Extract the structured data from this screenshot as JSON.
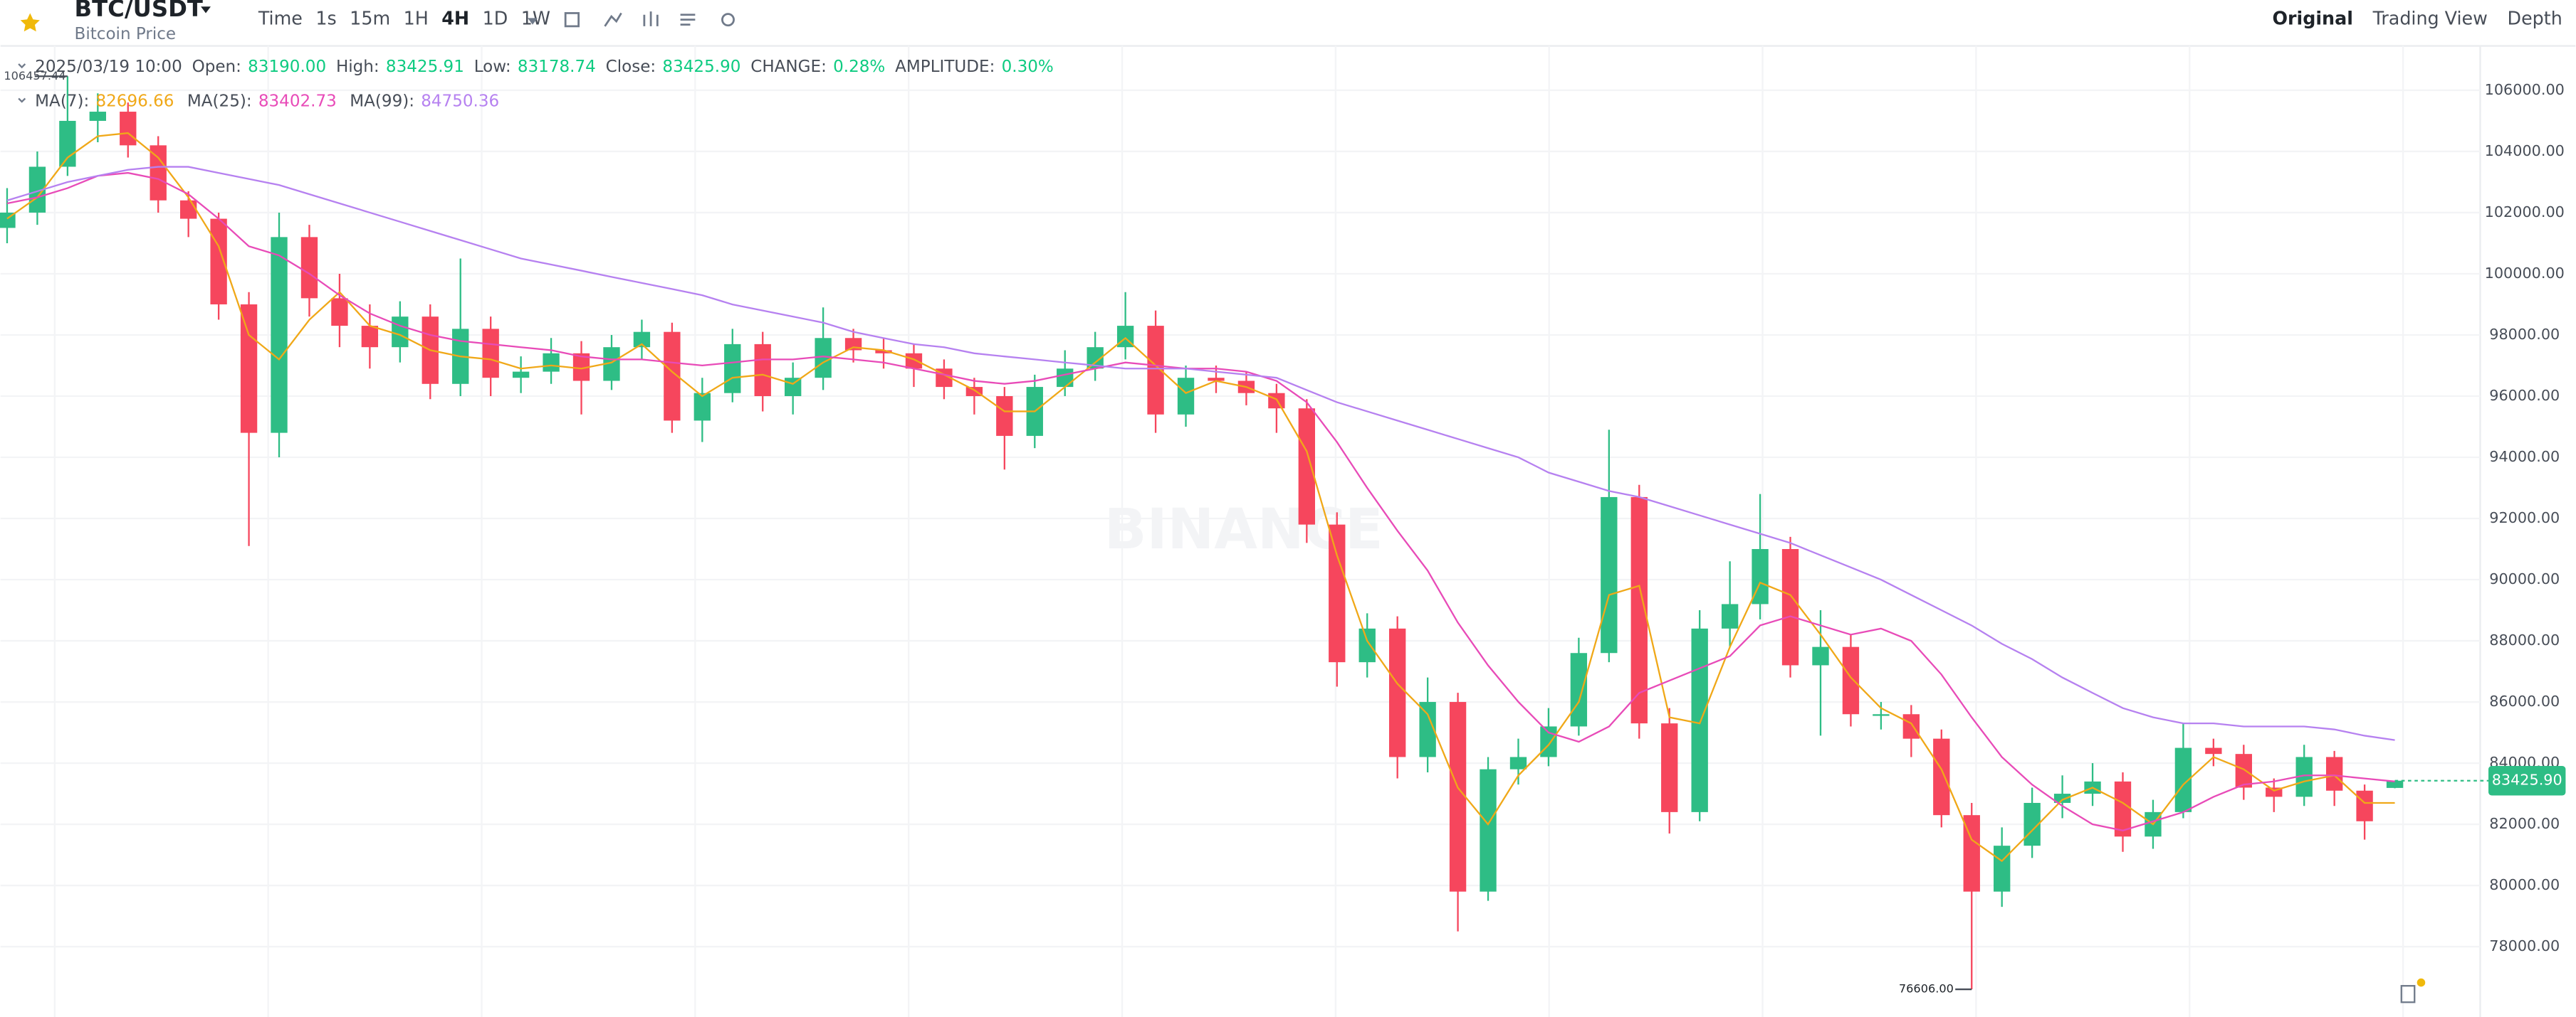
{
  "header": {
    "symbol": "BTC/USDT",
    "subtitle": "Bitcoin Price",
    "intervals": [
      "Time",
      "1s",
      "15m",
      "1H",
      "4H",
      "1D",
      "1W"
    ],
    "active_interval": "4H",
    "views": [
      "Original",
      "Trading View",
      "Depth"
    ],
    "active_view": "Original"
  },
  "chart_data": {
    "type": "candlestick",
    "info": {
      "date": "2025/03/19 10:00",
      "fields": [
        {
          "label": "Open:",
          "value": "83190.00"
        },
        {
          "label": "High:",
          "value": "83425.91"
        },
        {
          "label": "Low:",
          "value": "83178.74"
        },
        {
          "label": "Close:",
          "value": "83425.90"
        },
        {
          "label": "CHANGE:",
          "value": "0.28%"
        },
        {
          "label": "AMPLITUDE:",
          "value": "0.30%"
        }
      ],
      "value_color": "#0ecb81"
    },
    "candles": {
      "up_color": "#2ebd85",
      "down_color": "#f6465d",
      "open": [
        101500,
        102000,
        103500,
        105000,
        105300,
        104200,
        102400,
        101800,
        99000,
        94800,
        101200,
        99200,
        98300,
        97600,
        98600,
        96400,
        98200,
        96600,
        96800,
        97400,
        96500,
        97600,
        98100,
        95200,
        96100,
        97700,
        96000,
        96600,
        97900,
        97500,
        97400,
        96900,
        96300,
        96000,
        94700,
        96300,
        96900,
        97600,
        98300,
        95400,
        96600,
        96500,
        96100,
        95600,
        91800,
        87300,
        88400,
        84200,
        86000,
        79800,
        83800,
        84200,
        85200,
        87600,
        92700,
        85300,
        82400,
        88400,
        89200,
        91000,
        87200,
        87800,
        85600,
        85600,
        84800,
        82300,
        79800,
        81300,
        82700,
        83000,
        83400,
        81600,
        82400,
        84500,
        84300,
        83200,
        82900,
        84200,
        83100,
        83190
      ],
      "high": [
        102800,
        104000,
        106457.44,
        105900,
        105600,
        104500,
        102700,
        102000,
        99400,
        102000,
        101600,
        100000,
        99000,
        99100,
        99000,
        100500,
        98600,
        97300,
        97900,
        97800,
        98000,
        98500,
        98400,
        96600,
        98200,
        98100,
        97100,
        98900,
        98200,
        97900,
        97700,
        97200,
        96600,
        96300,
        96700,
        97500,
        98100,
        99400,
        98800,
        97000,
        97000,
        96800,
        96400,
        95900,
        92200,
        88900,
        88800,
        86800,
        86300,
        84200,
        84800,
        85800,
        88100,
        94900,
        93100,
        85800,
        89000,
        90600,
        92800,
        91400,
        89000,
        88200,
        86000,
        85900,
        85100,
        82700,
        81900,
        83200,
        83600,
        84000,
        83700,
        82800,
        85300,
        84800,
        84600,
        83500,
        84600,
        84400,
        83300,
        83425.91
      ],
      "low": [
        101000,
        101600,
        103200,
        104300,
        103800,
        102000,
        101200,
        98500,
        91100,
        94000,
        98600,
        97600,
        96900,
        97100,
        95900,
        96000,
        96000,
        96100,
        96400,
        95400,
        96200,
        97200,
        94800,
        94500,
        95800,
        95500,
        95400,
        96200,
        97100,
        96900,
        96300,
        95900,
        95400,
        93600,
        94300,
        96000,
        96500,
        97200,
        94800,
        95000,
        96100,
        95700,
        94800,
        91200,
        86500,
        86800,
        83500,
        83700,
        78500,
        79500,
        83300,
        83900,
        84900,
        87300,
        84800,
        81700,
        82100,
        87800,
        88700,
        86800,
        84900,
        85200,
        85100,
        84200,
        81900,
        76606,
        79300,
        80900,
        82200,
        82600,
        81100,
        81200,
        82200,
        83900,
        82800,
        82400,
        82600,
        82600,
        81500,
        83178.74
      ],
      "close": [
        102000,
        103500,
        105000,
        105300,
        104200,
        102400,
        101800,
        99000,
        94800,
        101200,
        99200,
        98300,
        97600,
        98600,
        96400,
        98200,
        96600,
        96800,
        97400,
        96500,
        97600,
        98100,
        95200,
        96100,
        97700,
        96000,
        96600,
        97900,
        97500,
        97400,
        96900,
        96300,
        96000,
        94700,
        96300,
        96900,
        97600,
        98300,
        95400,
        96600,
        96500,
        96100,
        95600,
        91800,
        87300,
        88400,
        84200,
        86000,
        79800,
        83800,
        84200,
        85200,
        87600,
        92700,
        85300,
        82400,
        88400,
        89200,
        91000,
        87200,
        87800,
        85600,
        85600,
        84800,
        82300,
        79800,
        81300,
        82700,
        83000,
        83400,
        81600,
        82400,
        84500,
        84300,
        83200,
        82900,
        84200,
        83100,
        82100,
        83425.9
      ]
    },
    "series": [
      {
        "name": "MA(7):",
        "value_label": "82696.66",
        "color": "#f0a818",
        "values": [
          101800,
          102500,
          103800,
          104500,
          104600,
          103800,
          102500,
          100900,
          98000,
          97200,
          98500,
          99400,
          98300,
          98000,
          97500,
          97300,
          97200,
          96900,
          97000,
          96900,
          97100,
          97700,
          96800,
          96000,
          96600,
          96700,
          96400,
          97100,
          97600,
          97500,
          97200,
          96700,
          96200,
          95500,
          95500,
          96300,
          97100,
          97900,
          97000,
          96100,
          96500,
          96300,
          95900,
          94200,
          90800,
          88000,
          86600,
          85600,
          83200,
          82000,
          83600,
          84600,
          86000,
          89500,
          89800,
          85500,
          85300,
          87800,
          89900,
          89500,
          88200,
          86800,
          85800,
          85300,
          83800,
          81500,
          80800,
          81800,
          82800,
          83200,
          82700,
          82000,
          83300,
          84200,
          83800,
          83100,
          83400,
          83600,
          82700,
          82696.66
        ]
      },
      {
        "name": "MA(25):",
        "value_label": "83402.73",
        "color": "#e84bb8",
        "values": [
          102300,
          102500,
          102800,
          103200,
          103300,
          103100,
          102600,
          101800,
          100900,
          100600,
          100000,
          99300,
          98700,
          98300,
          98000,
          97800,
          97700,
          97600,
          97500,
          97300,
          97200,
          97200,
          97100,
          97000,
          97100,
          97200,
          97200,
          97300,
          97200,
          97100,
          96900,
          96700,
          96500,
          96400,
          96500,
          96700,
          96900,
          97100,
          97000,
          96900,
          96900,
          96800,
          96500,
          95800,
          94500,
          93000,
          91600,
          90300,
          88600,
          87200,
          86000,
          85000,
          84700,
          85200,
          86300,
          86700,
          87100,
          87500,
          88500,
          88800,
          88500,
          88200,
          88400,
          88000,
          86900,
          85500,
          84200,
          83300,
          82600,
          82000,
          81800,
          82100,
          82400,
          82900,
          83300,
          83400,
          83600,
          83600,
          83500,
          83402.73
        ]
      },
      {
        "name": "MA(99):",
        "value_label": "84750.36",
        "color": "#b681f0",
        "values": [
          102400,
          102700,
          103000,
          103200,
          103400,
          103500,
          103500,
          103300,
          103100,
          102900,
          102600,
          102300,
          102000,
          101700,
          101400,
          101100,
          100800,
          100500,
          100300,
          100100,
          99900,
          99700,
          99500,
          99300,
          99000,
          98800,
          98600,
          98400,
          98100,
          97900,
          97700,
          97600,
          97400,
          97300,
          97200,
          97100,
          97000,
          96900,
          96900,
          96900,
          96800,
          96700,
          96600,
          96200,
          95800,
          95500,
          95200,
          94900,
          94600,
          94300,
          94000,
          93500,
          93200,
          92900,
          92700,
          92400,
          92100,
          91800,
          91500,
          91200,
          90800,
          90400,
          90000,
          89500,
          89000,
          88500,
          87900,
          87400,
          86800,
          86300,
          85800,
          85500,
          85300,
          85300,
          85200,
          85200,
          85200,
          85100,
          84900,
          84750.36
        ]
      }
    ],
    "ylim": [
      75700,
      107450
    ],
    "yticks": [
      {
        "value": 78000,
        "label": "78000.00"
      },
      {
        "value": 80000,
        "label": "80000.00"
      },
      {
        "value": 82000,
        "label": "82000.00"
      },
      {
        "value": 84000,
        "label": "84000.00"
      },
      {
        "value": 86000,
        "label": "86000.00"
      },
      {
        "value": 88000,
        "label": "88000.00"
      },
      {
        "value": 90000,
        "label": "90000.00"
      },
      {
        "value": 92000,
        "label": "92000.00"
      },
      {
        "value": 94000,
        "label": "94000.00"
      },
      {
        "value": 96000,
        "label": "96000.00"
      },
      {
        "value": 98000,
        "label": "98000.00"
      },
      {
        "value": 100000,
        "label": "100000.00"
      },
      {
        "value": 102000,
        "label": "102000.00"
      },
      {
        "value": 104000,
        "label": "104000.00"
      },
      {
        "value": 106000,
        "label": "106000.00"
      }
    ],
    "grid": true,
    "last_price_label": "83425.90",
    "last_price_color": "#2ebd85",
    "max_label": "106457.44",
    "min_label": "76606.00",
    "watermark": "BINANCE"
  }
}
